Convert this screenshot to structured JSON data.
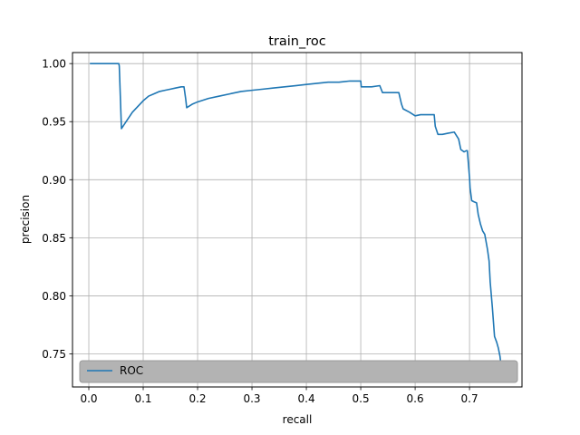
{
  "chart_data": {
    "type": "line",
    "title": "train_roc",
    "xlabel": "recall",
    "ylabel": "precision",
    "xlim": [
      -0.03,
      0.7965
    ],
    "ylim": [
      0.7215,
      1.0095
    ],
    "xticks": [
      0.0,
      0.1,
      0.2,
      0.3,
      0.4,
      0.5,
      0.6,
      0.7
    ],
    "xtick_labels": [
      "0.0",
      "0.1",
      "0.2",
      "0.3",
      "0.4",
      "0.5",
      "0.6",
      "0.7"
    ],
    "yticks": [
      0.75,
      0.8,
      0.85,
      0.9,
      0.95,
      1.0
    ],
    "ytick_labels": [
      "0.75",
      "0.80",
      "0.85",
      "0.90",
      "0.95",
      "1.00"
    ],
    "grid": true,
    "legend": {
      "position": "lower-left",
      "background": "#b3b3b3"
    },
    "colors": {
      "line": "#1f77b4",
      "grid": "#b0b0b0"
    },
    "series": [
      {
        "name": "ROC",
        "x": [
          0.002,
          0.055,
          0.056,
          0.06,
          0.07,
          0.08,
          0.09,
          0.1,
          0.11,
          0.12,
          0.13,
          0.14,
          0.15,
          0.16,
          0.17,
          0.175,
          0.178,
          0.18,
          0.19,
          0.2,
          0.22,
          0.24,
          0.26,
          0.28,
          0.3,
          0.32,
          0.34,
          0.36,
          0.38,
          0.4,
          0.42,
          0.44,
          0.46,
          0.48,
          0.5,
          0.501,
          0.505,
          0.52,
          0.535,
          0.54,
          0.555,
          0.57,
          0.575,
          0.578,
          0.59,
          0.6,
          0.61,
          0.62,
          0.63,
          0.635,
          0.637,
          0.642,
          0.65,
          0.66,
          0.672,
          0.68,
          0.684,
          0.69,
          0.694,
          0.696,
          0.7,
          0.701,
          0.704,
          0.708,
          0.713,
          0.716,
          0.72,
          0.724,
          0.728,
          0.733,
          0.736,
          0.738,
          0.742,
          0.746,
          0.75,
          0.753,
          0.756,
          0.758,
          0.76
        ],
        "y": [
          1.0,
          1.0,
          0.998,
          0.944,
          0.951,
          0.958,
          0.963,
          0.968,
          0.972,
          0.974,
          0.976,
          0.977,
          0.978,
          0.979,
          0.98,
          0.98,
          0.97,
          0.962,
          0.965,
          0.967,
          0.97,
          0.972,
          0.974,
          0.976,
          0.977,
          0.978,
          0.979,
          0.98,
          0.981,
          0.982,
          0.983,
          0.984,
          0.984,
          0.985,
          0.985,
          0.98,
          0.98,
          0.98,
          0.981,
          0.975,
          0.975,
          0.975,
          0.965,
          0.961,
          0.958,
          0.955,
          0.956,
          0.956,
          0.956,
          0.956,
          0.946,
          0.939,
          0.939,
          0.94,
          0.941,
          0.935,
          0.926,
          0.924,
          0.925,
          0.925,
          0.902,
          0.893,
          0.882,
          0.881,
          0.88,
          0.87,
          0.862,
          0.856,
          0.853,
          0.84,
          0.83,
          0.812,
          0.79,
          0.765,
          0.76,
          0.755,
          0.748,
          0.74,
          0.734
        ]
      }
    ]
  }
}
